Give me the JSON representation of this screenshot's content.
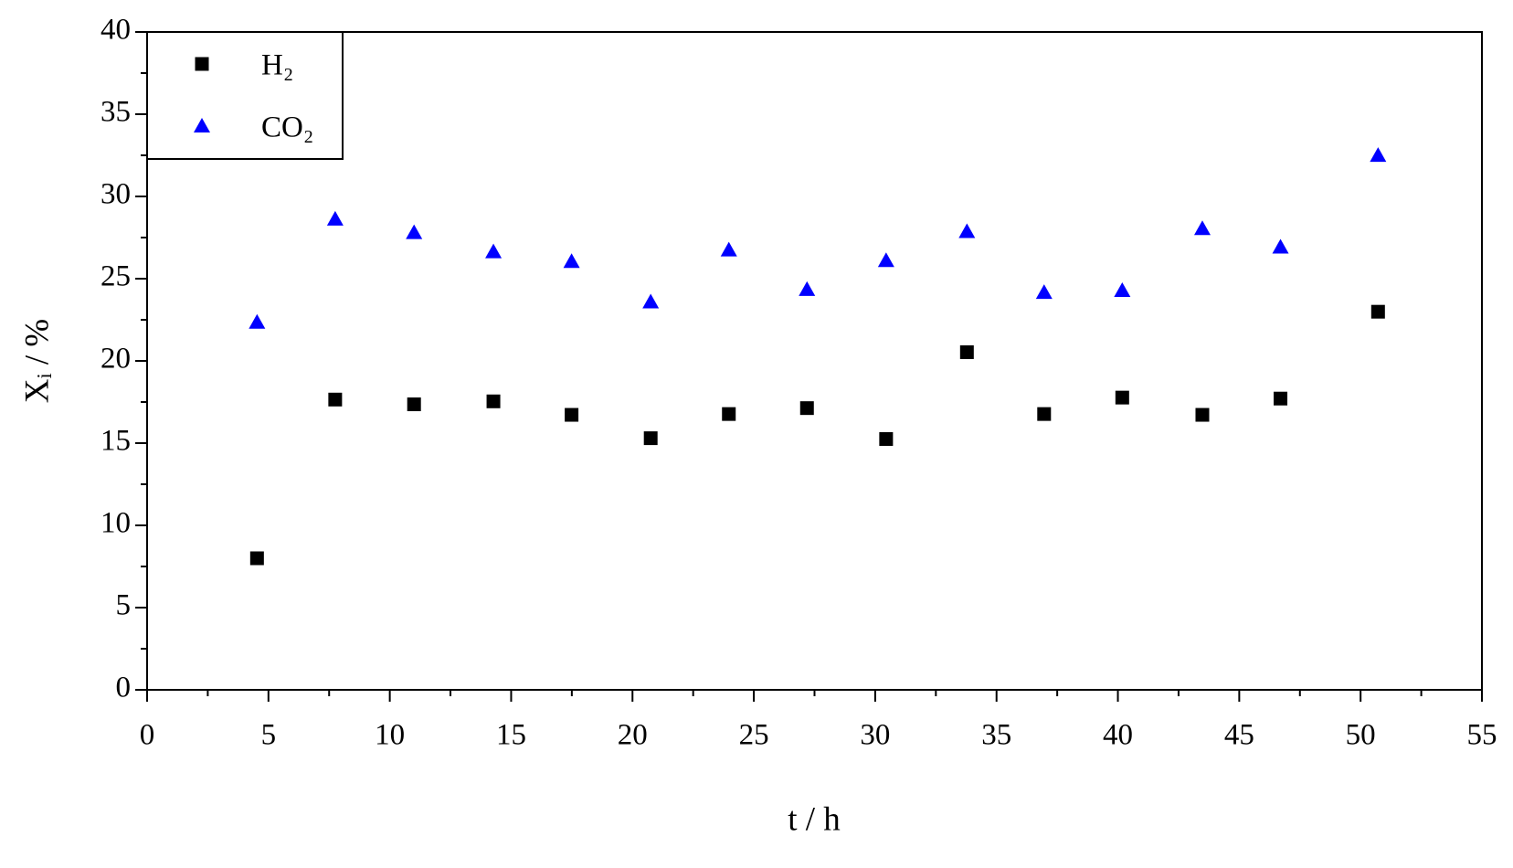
{
  "chart_data": {
    "type": "scatter",
    "xlabel": "t / h",
    "ylabel": "Xᵢ / %",
    "x": [
      4.53,
      7.75,
      11.0,
      14.27,
      17.49,
      20.75,
      23.97,
      27.19,
      30.45,
      33.78,
      36.96,
      40.18,
      43.48,
      46.7,
      50.72
    ],
    "series": [
      {
        "name": "H₂",
        "color": "#000000",
        "marker": "square",
        "values": [
          8.0,
          17.65,
          17.36,
          17.54,
          16.72,
          15.3,
          16.77,
          17.13,
          15.25,
          20.53,
          16.77,
          17.77,
          16.72,
          17.71,
          22.99
        ]
      },
      {
        "name": "CO₂",
        "color": "#0000ff",
        "marker": "triangle",
        "values": [
          22.35,
          28.62,
          27.8,
          26.63,
          26.04,
          23.58,
          26.74,
          24.34,
          26.1,
          27.86,
          24.16,
          24.28,
          28.04,
          26.92,
          32.49
        ]
      }
    ],
    "xlim": [
      0,
      55
    ],
    "xticks": [
      0,
      5,
      10,
      15,
      20,
      25,
      30,
      35,
      40,
      45,
      50,
      55
    ],
    "ylim": [
      0,
      40
    ],
    "yticks": [
      0,
      5,
      10,
      15,
      20,
      25,
      30,
      35,
      40
    ],
    "minor_ticks": true,
    "grid": false,
    "legend": "upper left"
  }
}
